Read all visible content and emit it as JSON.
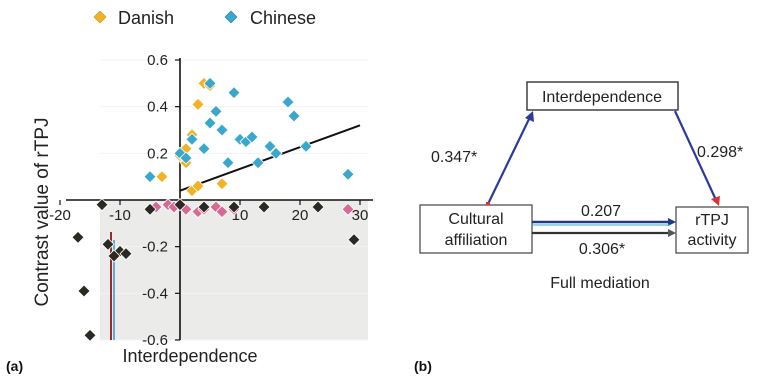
{
  "panel_a_label": "(a)",
  "panel_b_label": "(b)",
  "chart_data": [
    {
      "type": "scatter",
      "xlabel": "Interdependence",
      "ylabel": "Contrast value of rTPJ",
      "xlim": [
        -20,
        30
      ],
      "ylim": [
        -0.6,
        0.6
      ],
      "x_ticks": [
        "-20",
        "-10",
        "0",
        "10",
        "20",
        "30"
      ],
      "y_ticks": [
        "0.6",
        "0.4",
        "0.2",
        "-0.2",
        "-0.4",
        "-0.6"
      ],
      "x_tick_values": [
        -20,
        -10,
        0,
        10,
        20,
        30
      ],
      "y_tick_values": [
        0.6,
        0.4,
        0.2,
        -0.2,
        -0.4,
        -0.6
      ],
      "legend_position": "top",
      "series": [
        {
          "name": "Danish",
          "color": "#f2b224",
          "marker": "diamond",
          "points": [
            [
              -3,
              0.1
            ],
            [
              0,
              0.19
            ],
            [
              1,
              0.16
            ],
            [
              1,
              0.22
            ],
            [
              2,
              0.28
            ],
            [
              3,
              0.41
            ],
            [
              4,
              0.5
            ],
            [
              5,
              0.49
            ],
            [
              7,
              0.07
            ],
            [
              2,
              0.04
            ],
            [
              3,
              0.06
            ]
          ]
        },
        {
          "name": "Chinese",
          "color": "#3aa7cc",
          "marker": "diamond",
          "points": [
            [
              -5,
              0.1
            ],
            [
              0,
              0.2
            ],
            [
              1,
              0.18
            ],
            [
              2,
              0.26
            ],
            [
              4,
              0.22
            ],
            [
              5,
              0.5
            ],
            [
              5,
              0.33
            ],
            [
              6,
              0.38
            ],
            [
              7,
              0.3
            ],
            [
              8,
              0.16
            ],
            [
              9,
              0.46
            ],
            [
              10,
              0.26
            ],
            [
              11,
              0.25
            ],
            [
              12,
              0.27
            ],
            [
              13,
              0.16
            ],
            [
              15,
              0.23
            ],
            [
              16,
              0.2
            ],
            [
              18,
              0.42
            ],
            [
              19,
              0.36
            ],
            [
              21,
              0.23
            ],
            [
              28,
              0.11
            ]
          ]
        },
        {
          "name": "",
          "color": "#d76a94",
          "marker": "diamond",
          "points": [
            [
              -4,
              -0.03
            ],
            [
              -2,
              -0.02
            ],
            [
              -1,
              -0.03
            ],
            [
              1,
              -0.04
            ],
            [
              3,
              -0.05
            ],
            [
              4,
              -0.04
            ],
            [
              6,
              -0.03
            ],
            [
              7,
              -0.05
            ],
            [
              9,
              -0.04
            ],
            [
              28,
              -0.04
            ]
          ]
        },
        {
          "name": "",
          "color": "#2a2a22",
          "marker": "diamond",
          "points": [
            [
              -17,
              -0.16
            ],
            [
              -13,
              -0.02
            ],
            [
              -12,
              -0.19
            ],
            [
              -10,
              -0.22
            ],
            [
              -11,
              -0.24
            ],
            [
              -16,
              -0.39
            ],
            [
              -15,
              -0.58
            ],
            [
              -9,
              -0.23
            ],
            [
              -5,
              -0.04
            ],
            [
              0,
              -0.02
            ],
            [
              4,
              -0.03
            ],
            [
              9,
              -0.03
            ],
            [
              14,
              -0.03
            ],
            [
              23,
              -0.03
            ],
            [
              29,
              -0.17
            ]
          ]
        }
      ],
      "fit_line": {
        "x": [
          0,
          30
        ],
        "y": [
          0.04,
          0.32
        ],
        "color": "#111111"
      }
    },
    {
      "type": "diagram",
      "mediator_label": "Interdependence",
      "predictor_label": [
        "Cultural",
        "affiliation"
      ],
      "outcome_label": [
        "rTPJ",
        "activity"
      ],
      "path_a_value": "0.347*",
      "path_b_value": "0.298*",
      "path_c_prime_value": "0.207",
      "path_c_value": "0.306*",
      "caption": "Full mediation",
      "path_colors": {
        "ab": "#2c3a9a",
        "c_prime": "#1b3a8a",
        "c": "#333333"
      }
    }
  ]
}
